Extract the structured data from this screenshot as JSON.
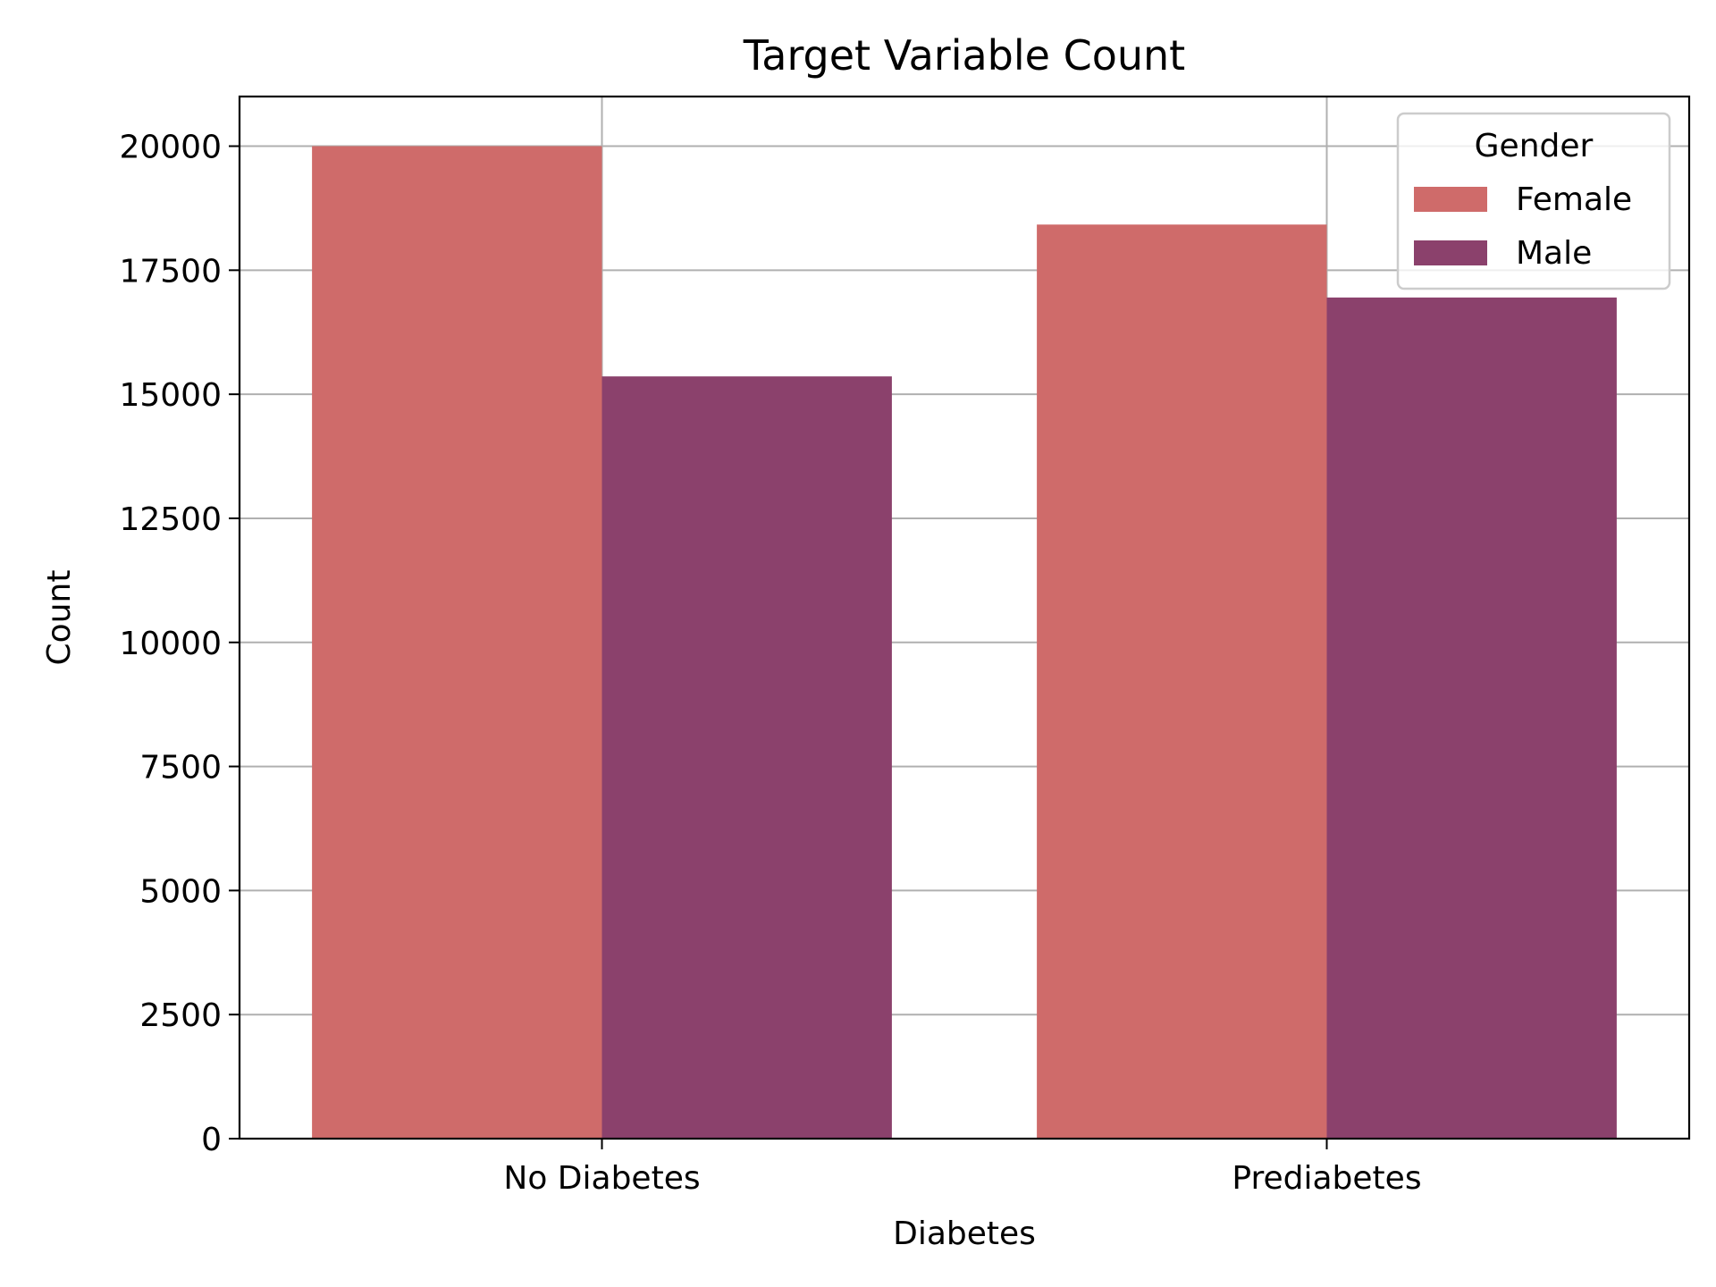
{
  "chart_data": {
    "type": "bar",
    "title": "Target Variable Count",
    "xlabel": "Diabetes",
    "ylabel": "Count",
    "categories": [
      "No Diabetes",
      "Prediabetes"
    ],
    "ylim": [
      0,
      21000
    ],
    "yticks": [
      0,
      2500,
      5000,
      7500,
      10000,
      12500,
      15000,
      17500,
      20000
    ],
    "ytick_labels": [
      "0",
      "2500",
      "5000",
      "7500",
      "10000",
      "12500",
      "15000",
      "17500",
      "20000"
    ],
    "grid": true,
    "legend": {
      "title": "Gender",
      "placement": "top-right"
    },
    "series": [
      {
        "name": "Female",
        "color": "#cf6b6a",
        "values": [
          20000,
          18420
        ]
      },
      {
        "name": "Male",
        "color": "#8b416c",
        "values": [
          15360,
          16950
        ]
      }
    ]
  }
}
